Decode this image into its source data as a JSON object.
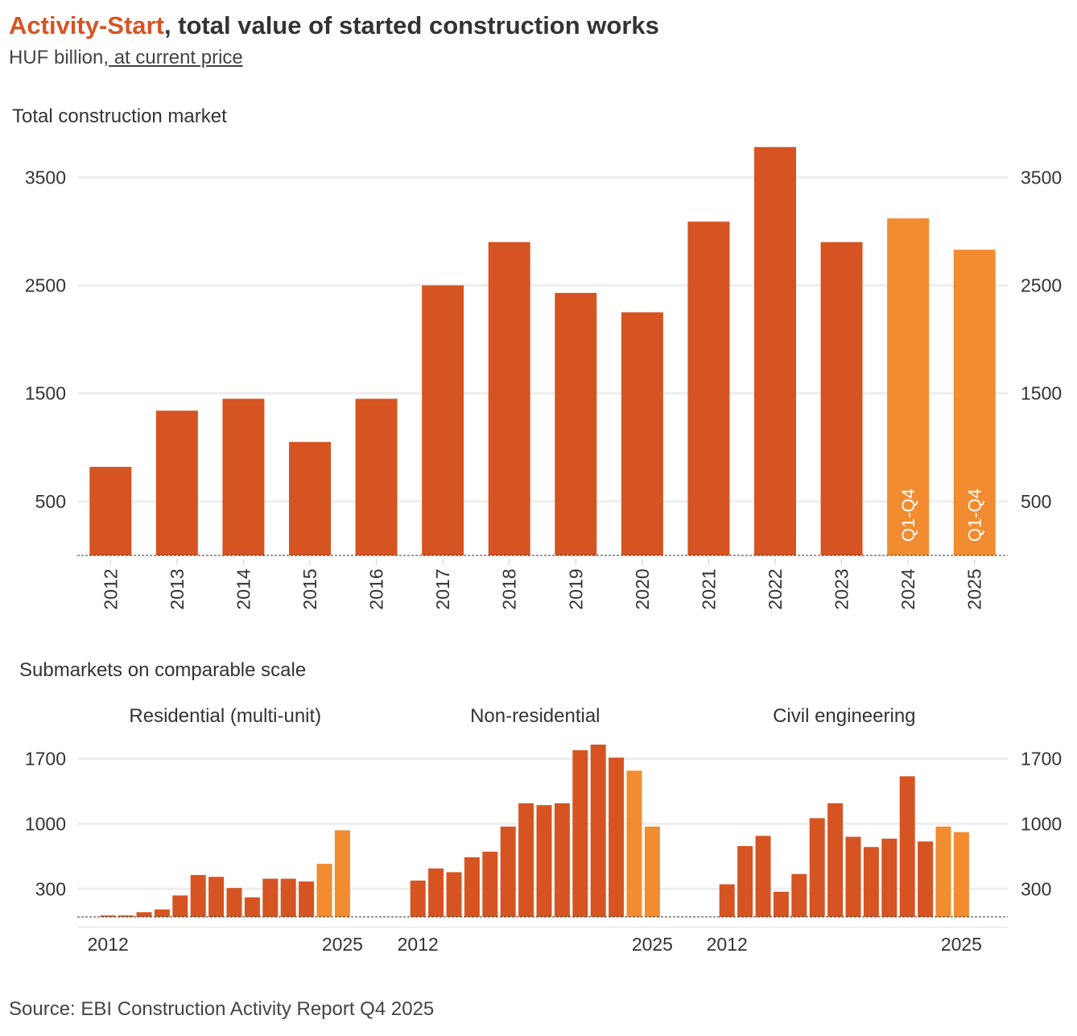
{
  "header": {
    "title_accent": "Activity-Start",
    "title_rest": ", total value of started construction works",
    "subtitle_unit": "HUF billion,",
    "subtitle_price": " at current price"
  },
  "footer": {
    "source": "Source: EBI Construction Activity Report Q4 2025"
  },
  "colors": {
    "bar": "#d65422",
    "bar_highlight": "#f28c30",
    "grid": "#eeeeee",
    "text": "#333333"
  },
  "chart_data": [
    {
      "type": "bar",
      "title": "Total construction market",
      "categories": [
        "2012",
        "2013",
        "2014",
        "2015",
        "2016",
        "2017",
        "2018",
        "2019",
        "2020",
        "2021",
        "2022",
        "2023",
        "2024",
        "2025"
      ],
      "values": [
        820,
        1340,
        1450,
        1050,
        1450,
        2500,
        2900,
        2430,
        2250,
        3090,
        3780,
        2900,
        3120,
        2830
      ],
      "highlight": [
        false,
        false,
        false,
        false,
        false,
        false,
        false,
        false,
        false,
        false,
        false,
        false,
        true,
        true
      ],
      "bar_labels": [
        "",
        "",
        "",
        "",
        "",
        "",
        "",
        "",
        "",
        "",
        "",
        "",
        "Q1-Q4",
        "Q1-Q4"
      ],
      "yticks": [
        500,
        1500,
        2500,
        3500
      ],
      "ylim": [
        0,
        3800
      ],
      "ylabel_both_sides": true,
      "grid": true
    },
    {
      "type": "bar",
      "title": "Submarkets on comparable scale",
      "yticks": [
        300,
        1000,
        1700
      ],
      "ylim": [
        0,
        1850
      ],
      "grid": true,
      "panels": [
        {
          "name": "Residential (multi-unit)",
          "x_first": "2012",
          "x_last": "2025",
          "years": [
            2012,
            2013,
            2014,
            2015,
            2016,
            2017,
            2018,
            2019,
            2020,
            2021,
            2022,
            2023,
            2024,
            2025
          ],
          "values": [
            15,
            15,
            50,
            80,
            230,
            450,
            430,
            310,
            210,
            410,
            410,
            380,
            570,
            930
          ],
          "highlight": [
            false,
            false,
            false,
            false,
            false,
            false,
            false,
            false,
            false,
            false,
            false,
            false,
            true,
            true
          ]
        },
        {
          "name": "Non-residential",
          "x_first": "2012",
          "x_last": "2025",
          "years": [
            2012,
            2013,
            2014,
            2015,
            2016,
            2017,
            2018,
            2019,
            2020,
            2021,
            2022,
            2023,
            2024,
            2025
          ],
          "values": [
            390,
            520,
            480,
            640,
            700,
            970,
            1220,
            1200,
            1220,
            1790,
            1850,
            1710,
            1570,
            970
          ],
          "highlight": [
            false,
            false,
            false,
            false,
            false,
            false,
            false,
            false,
            false,
            false,
            false,
            false,
            true,
            true
          ]
        },
        {
          "name": "Civil engineering",
          "x_first": "2012",
          "x_last": "2025",
          "years": [
            2012,
            2013,
            2014,
            2015,
            2016,
            2017,
            2018,
            2019,
            2020,
            2021,
            2022,
            2023,
            2024,
            2025
          ],
          "values": [
            350,
            760,
            870,
            270,
            460,
            1060,
            1220,
            860,
            750,
            840,
            1510,
            810,
            970,
            910
          ],
          "highlight": [
            false,
            false,
            false,
            false,
            false,
            false,
            false,
            false,
            false,
            false,
            false,
            false,
            true,
            true
          ]
        }
      ]
    }
  ]
}
